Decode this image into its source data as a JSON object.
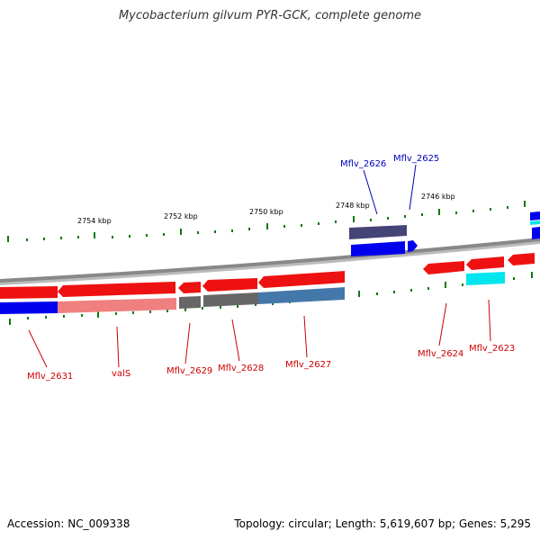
{
  "title": "Mycobacterium gilvum PYR-GCK, complete genome",
  "footer": {
    "accession": "Accession: NC_009338",
    "summary": "Topology: circular; Length: 5,619,607 bp; Genes: 5,295"
  },
  "ruler_labels": [
    "2754 kbp",
    "2752 kbp",
    "2750 kbp",
    "2748 kbp",
    "2746 kbp"
  ],
  "colors": {
    "forward_cds": "#ee1111",
    "reverse_cds": "#0000ee",
    "backbone": "#888888",
    "tick": "#117711",
    "label_red": "#cc0000",
    "label_blue": "#0000bb"
  },
  "gene_labels": [
    {
      "text": "Mflv_2626",
      "strand": "reverse"
    },
    {
      "text": "Mflv_2625",
      "strand": "reverse"
    },
    {
      "text": "Mflv_2631",
      "strand": "forward"
    },
    {
      "text": "valS",
      "strand": "forward"
    },
    {
      "text": "Mflv_2629",
      "strand": "forward"
    },
    {
      "text": "Mflv_2628",
      "strand": "forward"
    },
    {
      "text": "Mflv_2627",
      "strand": "forward"
    },
    {
      "text": "Mflv_2624",
      "strand": "forward"
    },
    {
      "text": "Mflv_2623",
      "strand": "forward"
    }
  ]
}
